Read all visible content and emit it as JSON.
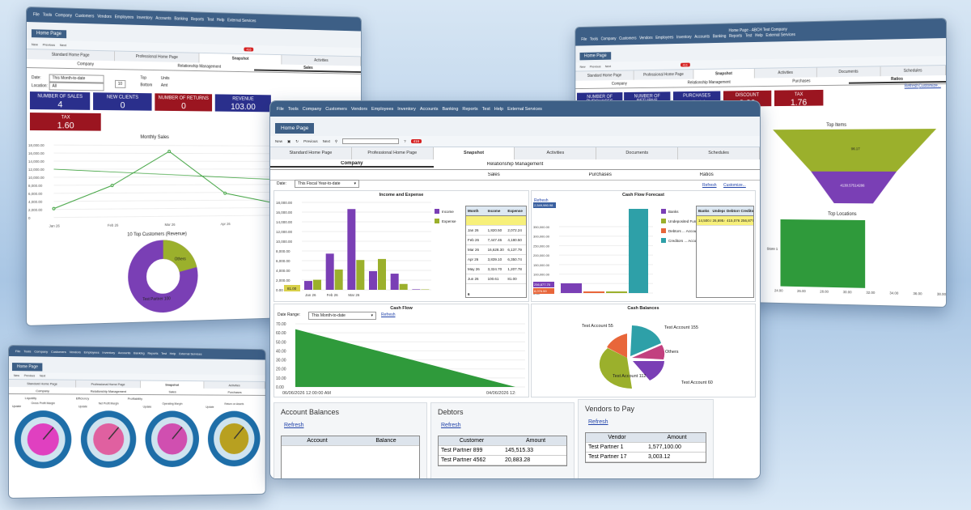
{
  "menu": [
    "File",
    "Tools",
    "Company",
    "Customers",
    "Vendors",
    "Employees",
    "Inventory",
    "Accounts",
    "Banking",
    "Reports",
    "Test",
    "Help",
    "External Services"
  ],
  "home_page": "Home Page",
  "toolbar": {
    "new": "New",
    "previous": "Previous",
    "next": "Next",
    "badge": "416"
  },
  "home_tabs": [
    "Standard Home Page",
    "Professional Home Page",
    "Snapshot",
    "Activities",
    "Documents",
    "Schedules"
  ],
  "sub_tabs": [
    "Company",
    "Relationship Management"
  ],
  "sub_tabs2": [
    "Sales",
    "Purchases",
    "Ratios"
  ],
  "left_window": {
    "date_label": "Date:",
    "date_value": "This Month-to-date",
    "location_label": "Location:",
    "location_value": "All",
    "top_value": "10",
    "top_label": "Top",
    "bottom_label": "Bottom",
    "units_label": "Units",
    "amounts_label": "Amt",
    "kpis": [
      {
        "label": "NUMBER OF SALES",
        "value": "4",
        "color": "#2a2f8c"
      },
      {
        "label": "NEW CLIENTS",
        "value": "0",
        "color": "#2a2f8c"
      },
      {
        "label": "NUMBER OF RETURNS",
        "value": "0",
        "color": "#9b1520"
      },
      {
        "label": "REVENUE",
        "value": "103.00",
        "color": "#2a2f8c"
      },
      {
        "label": "TAX",
        "value": "1.60",
        "color": "#9b1520"
      }
    ],
    "monthly_title": "Monthly Sales",
    "monthly_y": [
      "18,000.00",
      "16,000.00",
      "14,000.00",
      "12,000.00",
      "10,000.00",
      "8,000.00",
      "6,000.00",
      "4,000.00",
      "2,000.00",
      "0"
    ],
    "monthly_x": [
      "Jan 26",
      "Feb 26",
      "Mar 26",
      "Apr 26",
      "May 26"
    ],
    "monthly_values": [
      2200,
      7900,
      16500,
      5800,
      2900
    ],
    "top_customers_title": "10 Top Customers (Revenue)",
    "donut_labels": [
      "Others",
      "Test Partner 100"
    ]
  },
  "right_window": {
    "title": "Home Page - ABCH Test Company",
    "kpis": [
      {
        "label": "NUMBER OF PURCHASES",
        "value": "1",
        "color": "#2a2f8c"
      },
      {
        "label": "NUMBER OF RETURNS",
        "value": "0",
        "color": "#2a2f8c"
      },
      {
        "label": "PURCHASES",
        "value": "35.11",
        "color": "#2a2f8c"
      },
      {
        "label": "DISCOUNT",
        "value": "0.00",
        "color": "#9b1520"
      },
      {
        "label": "TAX",
        "value": "1.76",
        "color": "#9b1520"
      }
    ],
    "refresh": "Refresh",
    "customize": "Customize...",
    "top_items_title": "Top Items",
    "funnel_values": [
      "96.17",
      "4130.57514286"
    ],
    "top_locations_title": "Top Locations",
    "loc_axis_label": "Store 1",
    "loc_x": [
      "24.00",
      "26.00",
      "28.00",
      "30.00",
      "32.00",
      "34.00",
      "36.00",
      "38.00"
    ]
  },
  "small_window": {
    "title": "Home Page - ABCH Test Company",
    "sections": [
      "Liquidity",
      "Efficiency",
      "Profitability"
    ],
    "gauges": [
      "Gross Profit Margin",
      "Net Profit Margin",
      "Operating Margin",
      "Return on Assets"
    ],
    "update": "Update"
  },
  "main": {
    "date_label": "Date:",
    "date_value": "This Fiscal Year-to-date",
    "refresh": "Refresh",
    "customize": "Customize...",
    "ie_title": "Income and Expense",
    "ie_y": [
      "18,000.00",
      "16,000.00",
      "14,000.00",
      "12,000.00",
      "10,000.00",
      "8,000.00",
      "6,000.00",
      "4,000.00",
      "2,000.00",
      "0.00"
    ],
    "ie_hover": "81.00",
    "ie_legend": [
      "Income",
      "Expense"
    ],
    "ie_months": [
      "Jan 26",
      "Feb 26",
      "Mar 26",
      "Apr 26",
      "May 26",
      "Jun 26"
    ],
    "ie_income": [
      1820.5,
      7447.46,
      16628.3,
      3839.1,
      3324.7,
      100.61
    ],
    "ie_expense": [
      2072.24,
      4180.5,
      6137.79,
      6350.74,
      1207.78,
      81.0
    ],
    "ie_table": {
      "headers": [
        "Month",
        "Income",
        "Expense"
      ],
      "rows": [
        [
          "Jan 26",
          "1,820.50",
          "2,072.24"
        ],
        [
          "Feb 26",
          "7,447.46",
          "4,180.50"
        ],
        [
          "Mar 26",
          "16,628.30",
          "6,137.79"
        ],
        [
          "Apr 26",
          "3,839.10",
          "6,350.74"
        ],
        [
          "May 26",
          "3,324.70",
          "1,207.78"
        ],
        [
          "Jun 26",
          "100.61",
          "81.00"
        ]
      ],
      "count": "6"
    },
    "cf_forecast_title": "Cash Flow Forecast",
    "cf_top_value": "2,549,980.98",
    "cf_y": [
      "350,000.00",
      "300,000.00",
      "250,000.00",
      "200,000.00",
      "150,000.00",
      "100,000.00",
      "50,000.00",
      "0.00"
    ],
    "cf_low_values": [
      "256,877.70",
      "8,076.59"
    ],
    "cf_legend": [
      "Banks",
      "Undeposited Funds",
      "Debtors ... Accounts",
      "Creditors ... Accounts"
    ],
    "cf_table_headers": [
      "Banks",
      "Undeposi...",
      "Debtors...",
      "Creditors..."
    ],
    "cf_table_row": [
      "14,500.00",
      "26,695.00",
      "415,076.52",
      "256,877.70"
    ],
    "cash_flow_title": "Cash Flow",
    "date_range_label": "Date Range:",
    "date_range_value": "This Month-to-date",
    "cash_y": [
      "70.00",
      "60.00",
      "50.00",
      "40.00",
      "30.00",
      "20.00",
      "10.00",
      "0.00"
    ],
    "cash_x_start": "06/06/2026 12:00:00 AM",
    "cash_x_end": "04/06/2026 12:",
    "cash_balances_title": "Cash Balances",
    "pie_labels": [
      "Test Account 155",
      "Test Account 55",
      "Others",
      "Test Account 112",
      "Test Account 60"
    ],
    "account_balances": {
      "title": "Account Balances",
      "refresh": "Refresh",
      "headers": [
        "Account",
        "Balance"
      ]
    },
    "debtors": {
      "title": "Debtors",
      "refresh": "Refresh",
      "headers": [
        "Customer",
        "Amount"
      ],
      "rows": [
        [
          "Test Partner 899",
          "145,515.33"
        ],
        [
          "Test Partner 4562",
          "20,883.28"
        ]
      ]
    },
    "vendors": {
      "title": "Vendors to Pay",
      "refresh": "Refresh",
      "headers": [
        "Vendor",
        "Amount"
      ],
      "rows": [
        [
          "Test Partner 1",
          "1,577,100.00"
        ],
        [
          "Test Partner 17",
          "3,003.12"
        ]
      ]
    }
  },
  "colors": {
    "purple": "#7a3fb5",
    "olive": "#9bb02c",
    "teal": "#2ea0a8",
    "orange": "#e8663a",
    "green": "#2f9a3b",
    "titlebar": "#3d5f86",
    "navy": "#2a2f8c",
    "red": "#9b1520"
  }
}
